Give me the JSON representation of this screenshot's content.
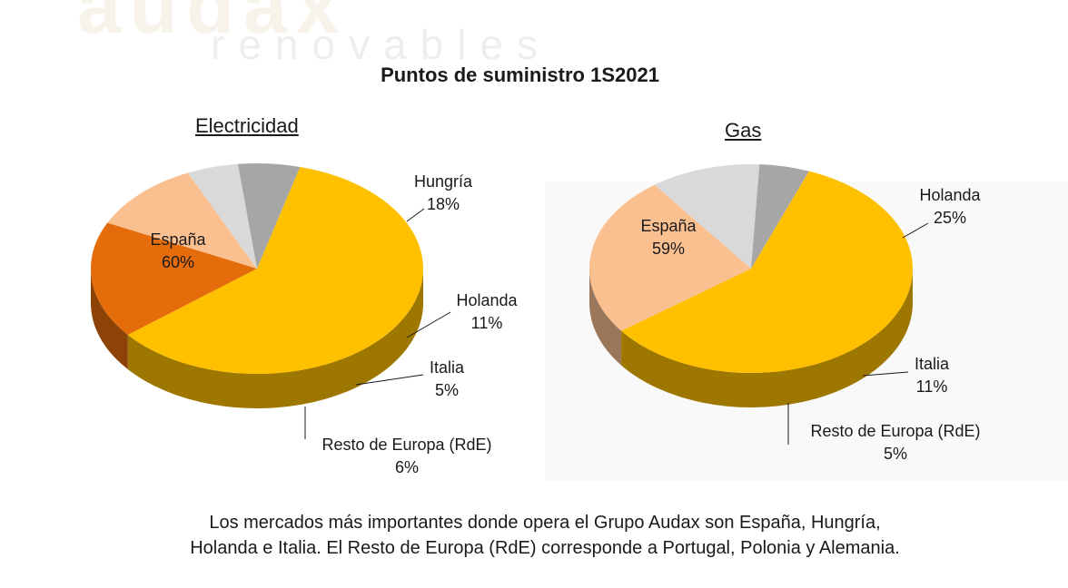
{
  "background": {
    "logo_text": "audax",
    "logo_sub": "renovables"
  },
  "title": "Puntos de suministro 1S2021",
  "colors": {
    "espana": "#ffc000",
    "hungria": "#e46c0a",
    "holanda": "#fac090",
    "italia": "#d9d9d9",
    "rde": "#a6a6a6"
  },
  "chart_data": [
    {
      "type": "pie",
      "title": "Electricidad",
      "slices": [
        {
          "label": "España",
          "value": 60,
          "value_label": "60%",
          "color_key": "espana"
        },
        {
          "label": "Hungría",
          "value": 18,
          "value_label": "18%",
          "color_key": "hungria"
        },
        {
          "label": "Holanda",
          "value": 11,
          "value_label": "11%",
          "color_key": "holanda"
        },
        {
          "label": "Italia",
          "value": 5,
          "value_label": "5%",
          "color_key": "italia"
        },
        {
          "label": "Resto de Europa (RdE)",
          "value": 6,
          "value_label": "6%",
          "color_key": "rde"
        }
      ]
    },
    {
      "type": "pie",
      "title": "Gas",
      "slices": [
        {
          "label": "España",
          "value": 59,
          "value_label": "59%",
          "color_key": "espana"
        },
        {
          "label": "Holanda",
          "value": 25,
          "value_label": "25%",
          "color_key": "holanda"
        },
        {
          "label": "Italia",
          "value": 11,
          "value_label": "11%",
          "color_key": "italia"
        },
        {
          "label": "Resto de Europa (RdE)",
          "value": 5,
          "value_label": "5%",
          "color_key": "rde"
        }
      ]
    }
  ],
  "footer": {
    "line1": "Los mercados más importantes donde opera el Grupo Audax son España, Hungría,",
    "line2": "Holanda e Italia. El Resto de Europa (RdE) corresponde a Portugal, Polonia y Alemania."
  }
}
